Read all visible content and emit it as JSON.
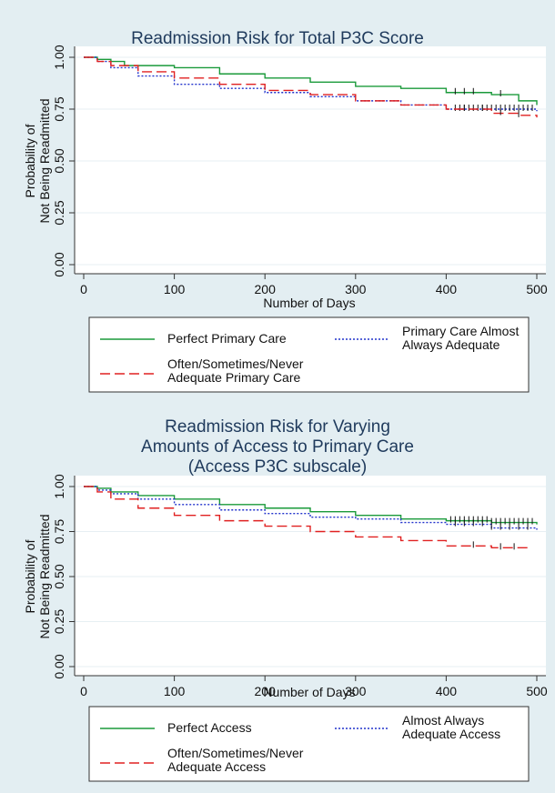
{
  "chart_data": [
    {
      "type": "line",
      "title": "Readmission Risk for Total P3C Score",
      "xlabel": "Number of Days",
      "ylabel": [
        "Probability of",
        "Not Being Readmitted"
      ],
      "xlim": [
        0,
        500
      ],
      "ylim": [
        0,
        1
      ],
      "xticks": [
        "0",
        "100",
        "200",
        "300",
        "400",
        "500"
      ],
      "yticks": [
        "0.00",
        "0.25",
        "0.50",
        "0.75",
        "1.00"
      ],
      "grid": "horizontal",
      "legend_position": "below",
      "series": [
        {
          "name": "Perfect Primary Care",
          "color": "#1a9a3a",
          "dash": "solid",
          "x": [
            0,
            15,
            30,
            45,
            60,
            100,
            150,
            200,
            250,
            300,
            350,
            400,
            450,
            480,
            500
          ],
          "y": [
            1.0,
            0.99,
            0.98,
            0.96,
            0.96,
            0.95,
            0.92,
            0.9,
            0.88,
            0.86,
            0.85,
            0.83,
            0.82,
            0.79,
            0.77
          ],
          "censor_x": [
            410,
            420,
            430,
            460
          ]
        },
        {
          "name": "Primary Care Almost Always Adequate",
          "color": "#2233cc",
          "dash": "dotted",
          "x": [
            0,
            15,
            30,
            60,
            100,
            150,
            200,
            250,
            300,
            350,
            400,
            450,
            500
          ],
          "y": [
            1.0,
            0.98,
            0.95,
            0.91,
            0.87,
            0.85,
            0.83,
            0.81,
            0.79,
            0.77,
            0.75,
            0.75,
            0.74
          ],
          "censor_x": [
            410,
            415,
            420,
            425,
            430,
            435,
            440,
            445,
            450,
            455,
            460,
            465,
            470,
            475,
            480,
            485,
            490,
            495
          ]
        },
        {
          "name": "Often/Sometimes/Never Adequate Primary Care",
          "color": "#e02020",
          "dash": "dashed",
          "x": [
            0,
            15,
            30,
            60,
            100,
            150,
            200,
            250,
            300,
            350,
            400,
            450,
            480,
            500
          ],
          "y": [
            1.0,
            0.98,
            0.96,
            0.93,
            0.9,
            0.87,
            0.84,
            0.82,
            0.79,
            0.77,
            0.75,
            0.73,
            0.72,
            0.71
          ],
          "censor_x": [
            420,
            440,
            460,
            480
          ]
        }
      ],
      "legend": [
        [
          "Perfect Primary Care"
        ],
        [
          "Primary Care Almost",
          "Always Adequate"
        ],
        [
          "Often/Sometimes/Never",
          "Adequate Primary Care"
        ]
      ]
    },
    {
      "type": "line",
      "title": [
        "Readmission Risk for Varying",
        "Amounts of Access to Primary Care",
        "(Access P3C subscale)"
      ],
      "xlabel": "Number of Days",
      "ylabel": [
        "Probability of",
        "Not Being Readmitted"
      ],
      "xlim": [
        0,
        500
      ],
      "ylim": [
        0,
        1
      ],
      "xticks": [
        "0",
        "100",
        "200",
        "300",
        "400",
        "500"
      ],
      "yticks": [
        "0.00",
        "0.25",
        "0.50",
        "0.75",
        "1.00"
      ],
      "grid": "horizontal",
      "legend_position": "below",
      "series": [
        {
          "name": "Perfect Access",
          "color": "#1a9a3a",
          "dash": "solid",
          "x": [
            0,
            15,
            30,
            60,
            100,
            150,
            200,
            250,
            300,
            350,
            400,
            450,
            500
          ],
          "y": [
            1.0,
            0.99,
            0.97,
            0.95,
            0.93,
            0.9,
            0.88,
            0.86,
            0.84,
            0.82,
            0.81,
            0.8,
            0.79
          ],
          "censor_x": [
            405,
            410,
            415,
            420,
            425,
            430,
            435,
            440,
            445,
            450,
            455,
            460,
            465,
            470,
            475,
            480,
            485,
            490,
            495
          ]
        },
        {
          "name": "Almost Always Adequate Access",
          "color": "#2233cc",
          "dash": "dotted",
          "x": [
            0,
            15,
            30,
            60,
            100,
            150,
            200,
            250,
            300,
            350,
            400,
            450,
            500
          ],
          "y": [
            1.0,
            0.98,
            0.96,
            0.93,
            0.9,
            0.87,
            0.85,
            0.83,
            0.82,
            0.8,
            0.79,
            0.77,
            0.76
          ],
          "censor_x": [
            410,
            420,
            430,
            440,
            450,
            460,
            470,
            480,
            490
          ]
        },
        {
          "name": "Often/Sometimes/Never Adequate Access",
          "color": "#e02020",
          "dash": "dashed",
          "x": [
            0,
            15,
            30,
            60,
            100,
            150,
            200,
            250,
            300,
            350,
            400,
            450,
            490
          ],
          "y": [
            1.0,
            0.97,
            0.93,
            0.88,
            0.84,
            0.81,
            0.78,
            0.75,
            0.72,
            0.7,
            0.67,
            0.66,
            0.65
          ],
          "censor_x": [
            430,
            460,
            475
          ]
        }
      ],
      "legend": [
        [
          "Perfect Access"
        ],
        [
          "Almost Always",
          "Adequate Access"
        ],
        [
          "Often/Sometimes/Never",
          "Adequate Access"
        ]
      ]
    }
  ]
}
